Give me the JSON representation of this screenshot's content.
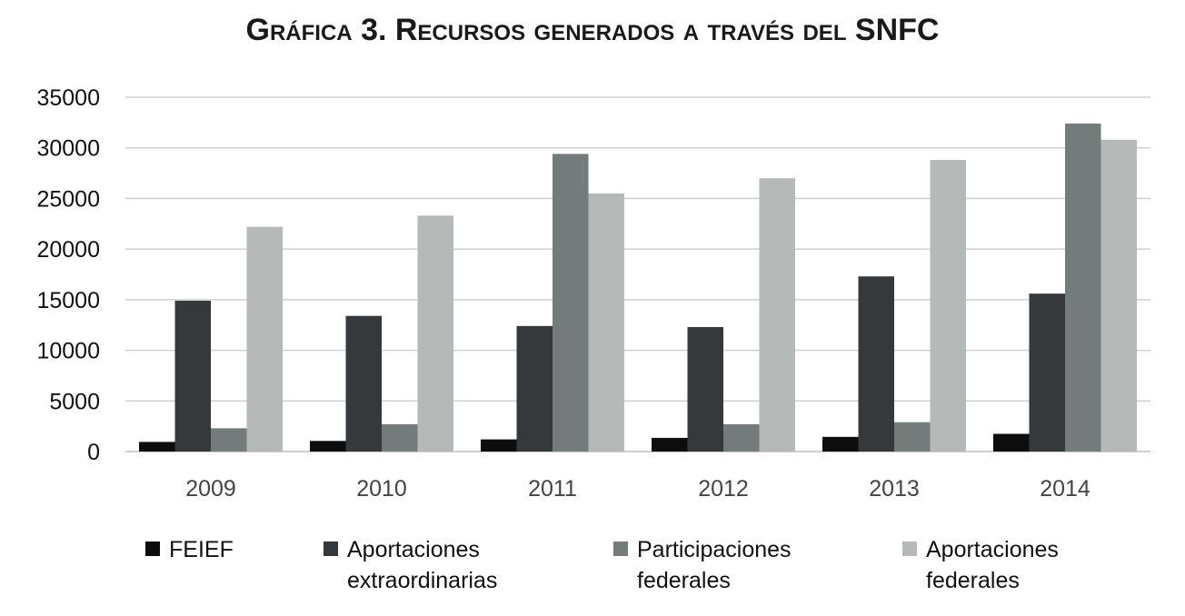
{
  "chart_data": {
    "type": "bar",
    "title": "Gráfica 3. Recursos generados a través del SNFC",
    "categories": [
      "2009",
      "2010",
      "2011",
      "2012",
      "2013",
      "2014"
    ],
    "series": [
      {
        "name": "FEIEF",
        "color": "#0d0d0d",
        "values": [
          950,
          1050,
          1200,
          1350,
          1450,
          1750
        ]
      },
      {
        "name": "Aportaciones\nextraordinarias",
        "color": "#36393b",
        "values": [
          14900,
          13400,
          12400,
          12300,
          17300,
          15600
        ]
      },
      {
        "name": "Participaciones\nfederales",
        "color": "#737c7b",
        "values": [
          2300,
          2700,
          29400,
          2700,
          2900,
          32400
        ]
      },
      {
        "name": "Aportaciones\nfederales",
        "color": "#b5bab8",
        "values": [
          22200,
          23300,
          25500,
          27000,
          28800,
          30800
        ]
      }
    ],
    "ylim": [
      0,
      35000
    ],
    "yticks": [
      "0",
      "5000",
      "10000",
      "15000",
      "20000",
      "25000",
      "30000",
      "35000"
    ],
    "grid": true,
    "legend_position": "bottom"
  }
}
